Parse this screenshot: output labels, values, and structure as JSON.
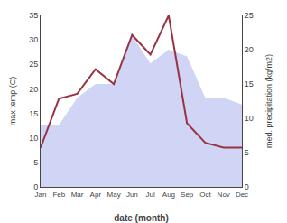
{
  "chart_data": {
    "type": "line",
    "categories": [
      "Jan",
      "Feb",
      "Mar",
      "Apr",
      "May",
      "Jun",
      "Jul",
      "Aug",
      "Sep",
      "Oct",
      "Nov",
      "Dec"
    ],
    "series": [
      {
        "type": "area",
        "axis": "y2",
        "color": "#c8cef5",
        "values": [
          9.0,
          9.0,
          13.0,
          15.0,
          15.0,
          22.0,
          18.0,
          20.0,
          19.0,
          13.0,
          13.0,
          12.0
        ]
      },
      {
        "type": "line",
        "color": "#993344",
        "values": [
          8.0,
          18.0,
          19.0,
          24.0,
          21.0,
          31.0,
          27.0,
          35.0,
          13.0,
          9.0,
          8.0,
          8.0
        ]
      }
    ],
    "xlabel": "date (month)",
    "ylabel": "max temp (C)",
    "y2label": "med. precipitation (kg/m2)",
    "ylim": [
      0,
      35
    ],
    "yticks": [
      0,
      5,
      10,
      15,
      20,
      25,
      30,
      35
    ],
    "y2lim": [
      0,
      25
    ],
    "y2ticks": [
      0,
      5,
      10,
      15,
      20,
      25
    ],
    "grid": false
  }
}
